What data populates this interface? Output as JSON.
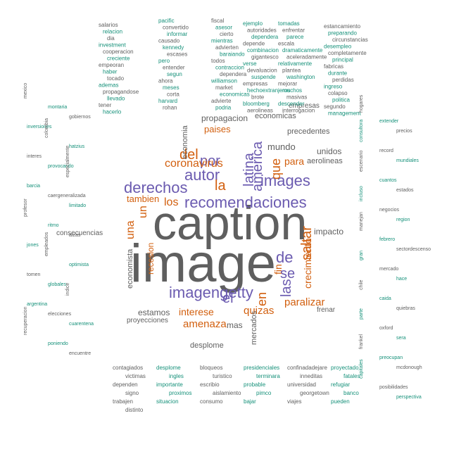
{
  "colors": {
    "level1": "#5f5f5f",
    "level2": "#6b5bb0",
    "level3": "#d25f0e",
    "level4": "#16917a",
    "level5": "#9a9a9a"
  },
  "words": {
    "caption": "caption",
    "image": "image",
    "recomendaciones": "recomendaciones",
    "imagengetty": "imagengetty",
    "derechos": "derechos",
    "autor": "autor",
    "images": "images",
    "latina": "latina",
    "america": "america",
    "coronavirus": "coronavirus",
    "saltar": "saltar",
    "las": "las",
    "de": "de",
    "se": "se",
    "el": "el",
    "en": "en",
    "por": "por",
    "del": "del",
    "la": "la",
    "que": "que",
    "para": "para",
    "los": "los",
    "una": "una",
    "un": "un",
    "tambien": "tambien",
    "amenaza": "amenaza",
    "interese": "interese",
    "quizas": "quizas",
    "paralizar": "paralizar",
    "crecimiento": "crecimiento",
    "mundo": "mundo",
    "paises": "paises",
    "propagacion": "propagacion",
    "economicas": "economicas",
    "impacto": "impacto",
    "estamos": "estamos",
    "fin": "fin",
    "mas": "mas",
    "economia": "economia",
    "precedentes": "precedentes",
    "recesion": "recesion",
    "mercados": "mercados",
    "desplome": "desplome",
    "economista": "economista",
    "empresas": "empresas",
    "aerolineas": "aerolineas",
    "unidos": "unidos",
    "proyecciones": "proyecciones",
    "consecuencias": "consecuencias",
    "frenar": "frenar"
  },
  "filler": {
    "col_a": [
      "salarios",
      "relacion",
      "dia",
      "investment",
      "cooperacion",
      "creciente",
      "empeoran",
      "haber",
      "tocado",
      "ademas",
      "propagandose",
      "llevado",
      "tener",
      "hacerlo"
    ],
    "col_b": [
      "pacific",
      "convertido",
      "informar",
      "causado",
      "kennedy",
      "escases",
      "pero",
      "entender",
      "segun",
      "ahora",
      "meses",
      "corta",
      "harvard",
      "rohan"
    ],
    "col_c": [
      "fiscal",
      "asesor",
      "cierto",
      "mientras",
      "advierten",
      "baraiando",
      "todos",
      "contraccion",
      "dependera",
      "williamson",
      "market",
      "economicas",
      "advierte",
      "podria"
    ],
    "col_d": [
      "ejemplo",
      "autoridades",
      "dependera",
      "depende",
      "combinacion",
      "gigantesco",
      "verse",
      "devaluacion",
      "suspende",
      "empresas",
      "hechoextranjeros",
      "brote",
      "bloomberg",
      "aerolineas"
    ],
    "col_e": [
      "tomadas",
      "enfrentar",
      "parece",
      "escala",
      "dramaticamente",
      "aceleradamente",
      "relativamente",
      "plantea",
      "washington",
      "mejorar",
      "muchos",
      "masivas",
      "descender",
      "interrogacion"
    ],
    "col_f": [
      "estancamiento",
      "preparando",
      "circunstancias",
      "desempleo",
      "completamente",
      "principal",
      "fabricas",
      "durante",
      "perdidas",
      "ingreso",
      "colapso",
      "politica",
      "segundo",
      "management"
    ],
    "bottom": [
      "contagiados",
      "desplome",
      "bloqueos",
      "presidenciales",
      "confinadadejare",
      "proyectado",
      "victimas",
      "ingles",
      "turistico",
      "terminara",
      "inneditas",
      "fatales",
      "dependen",
      "importante",
      "escribio",
      "probable",
      "universidad",
      "refugiar",
      "signo",
      "proximos",
      "aislamiento",
      "pimco",
      "georgetown",
      "banco",
      "trabajen",
      "situacion",
      "consumo",
      "bajar",
      "viajes",
      "pueden",
      "distinto"
    ],
    "left": [
      "mexico",
      "montaria",
      "gobiernos",
      "inversiones",
      "colombia",
      "hatzius",
      "interes",
      "provocando",
      "especialmente",
      "barcia",
      "caergeneralizada",
      "limitado",
      "profesor",
      "ritmo",
      "alzas",
      "jones",
      "empleados",
      "optimista",
      "tomen",
      "globales",
      "indice",
      "argentina",
      "elecciones",
      "cuarentena",
      "recuperacion",
      "poniendo",
      "encuentre"
    ],
    "right": [
      "hogares",
      "extender",
      "precios",
      "consultora",
      "record",
      "mundiales",
      "escenario",
      "cuantos",
      "estados",
      "incluso",
      "negocios",
      "region",
      "manejan",
      "febrero",
      "sectordescenso",
      "gran",
      "mercado",
      "hace",
      "chile",
      "caida",
      "quiebras",
      "parte",
      "oxford",
      "sera",
      "frankel",
      "preocupan",
      "mcdonough",
      "capitales",
      "posibilidades",
      "perspectiva"
    ]
  }
}
